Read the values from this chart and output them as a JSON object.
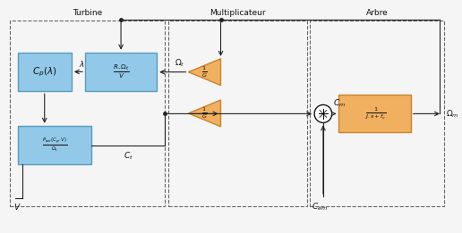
{
  "fig_width": 5.16,
  "fig_height": 2.61,
  "dpi": 100,
  "bg_color": "#f5f5f5",
  "box_blue_face": "#92C8E8",
  "box_blue_edge": "#5B9BBD",
  "box_orange_face": "#F0B060",
  "box_orange_edge": "#C8842A",
  "dashed_edge": "#666666",
  "arrow_color": "#222222",
  "text_color": "#111111",
  "labels": {
    "turbine": "Turbine",
    "multiplicateur": "Multiplicateur",
    "arbre": "Arbre",
    "cp_lambda": "$C_p(\\lambda)$",
    "r_omega_v": "$\\frac{R.\\Omega_t}{V}$",
    "p_aer": "$\\frac{P_{aér}(C_p,V)}{\\Omega_t}$",
    "inv_g_top": "$\\frac{1}{G}$",
    "inv_g_bot": "$\\frac{1}{G}$",
    "tf_arbre": "$\\frac{1}{J.s+f_v}$",
    "lambda_label": "$\\lambda$",
    "omega_t_label": "$\\Omega_t$",
    "omega_m_label": "$\\Omega_m$",
    "ct_label": "$C_t$",
    "cm_label": "$C_m$",
    "cem_label": "$C_{em}$",
    "v_label": "$V$"
  }
}
